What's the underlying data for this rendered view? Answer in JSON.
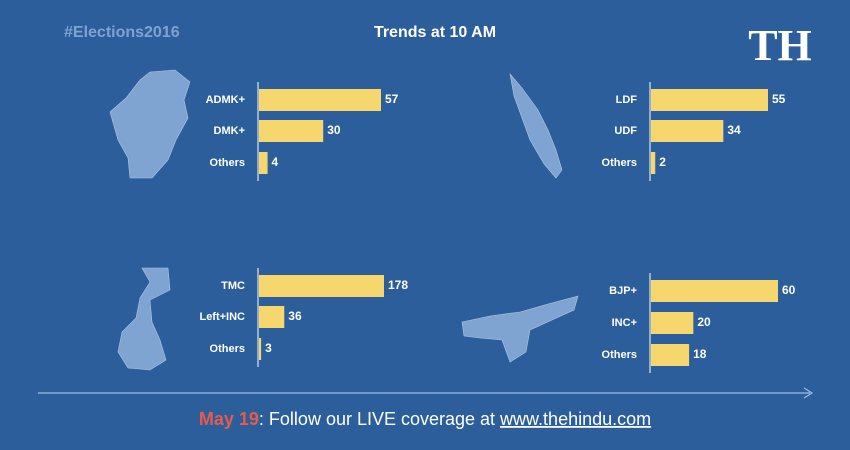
{
  "header": {
    "hashtag": "#Elections2016",
    "title": "Trends at 10 AM",
    "logo": "TH"
  },
  "footer": {
    "date": "May 19",
    "text": ": Follow our LIVE coverage at ",
    "link": "www.thehindu.com"
  },
  "chart_data": [
    {
      "type": "bar",
      "orientation": "horizontal",
      "categories": [
        "ADMK+",
        "DMK+",
        "Others"
      ],
      "values": [
        57,
        30,
        4
      ],
      "color": "#f5d76e"
    },
    {
      "type": "bar",
      "orientation": "horizontal",
      "categories": [
        "LDF",
        "UDF",
        "Others"
      ],
      "values": [
        55,
        34,
        2
      ],
      "color": "#f5d76e"
    },
    {
      "type": "bar",
      "orientation": "horizontal",
      "categories": [
        "TMC",
        "Left+INC",
        "Others"
      ],
      "values": [
        178,
        36,
        3
      ],
      "color": "#f5d76e"
    },
    {
      "type": "bar",
      "orientation": "horizontal",
      "categories": [
        "BJP+",
        "INC+",
        "Others"
      ],
      "values": [
        60,
        20,
        18
      ],
      "color": "#f5d76e"
    }
  ]
}
